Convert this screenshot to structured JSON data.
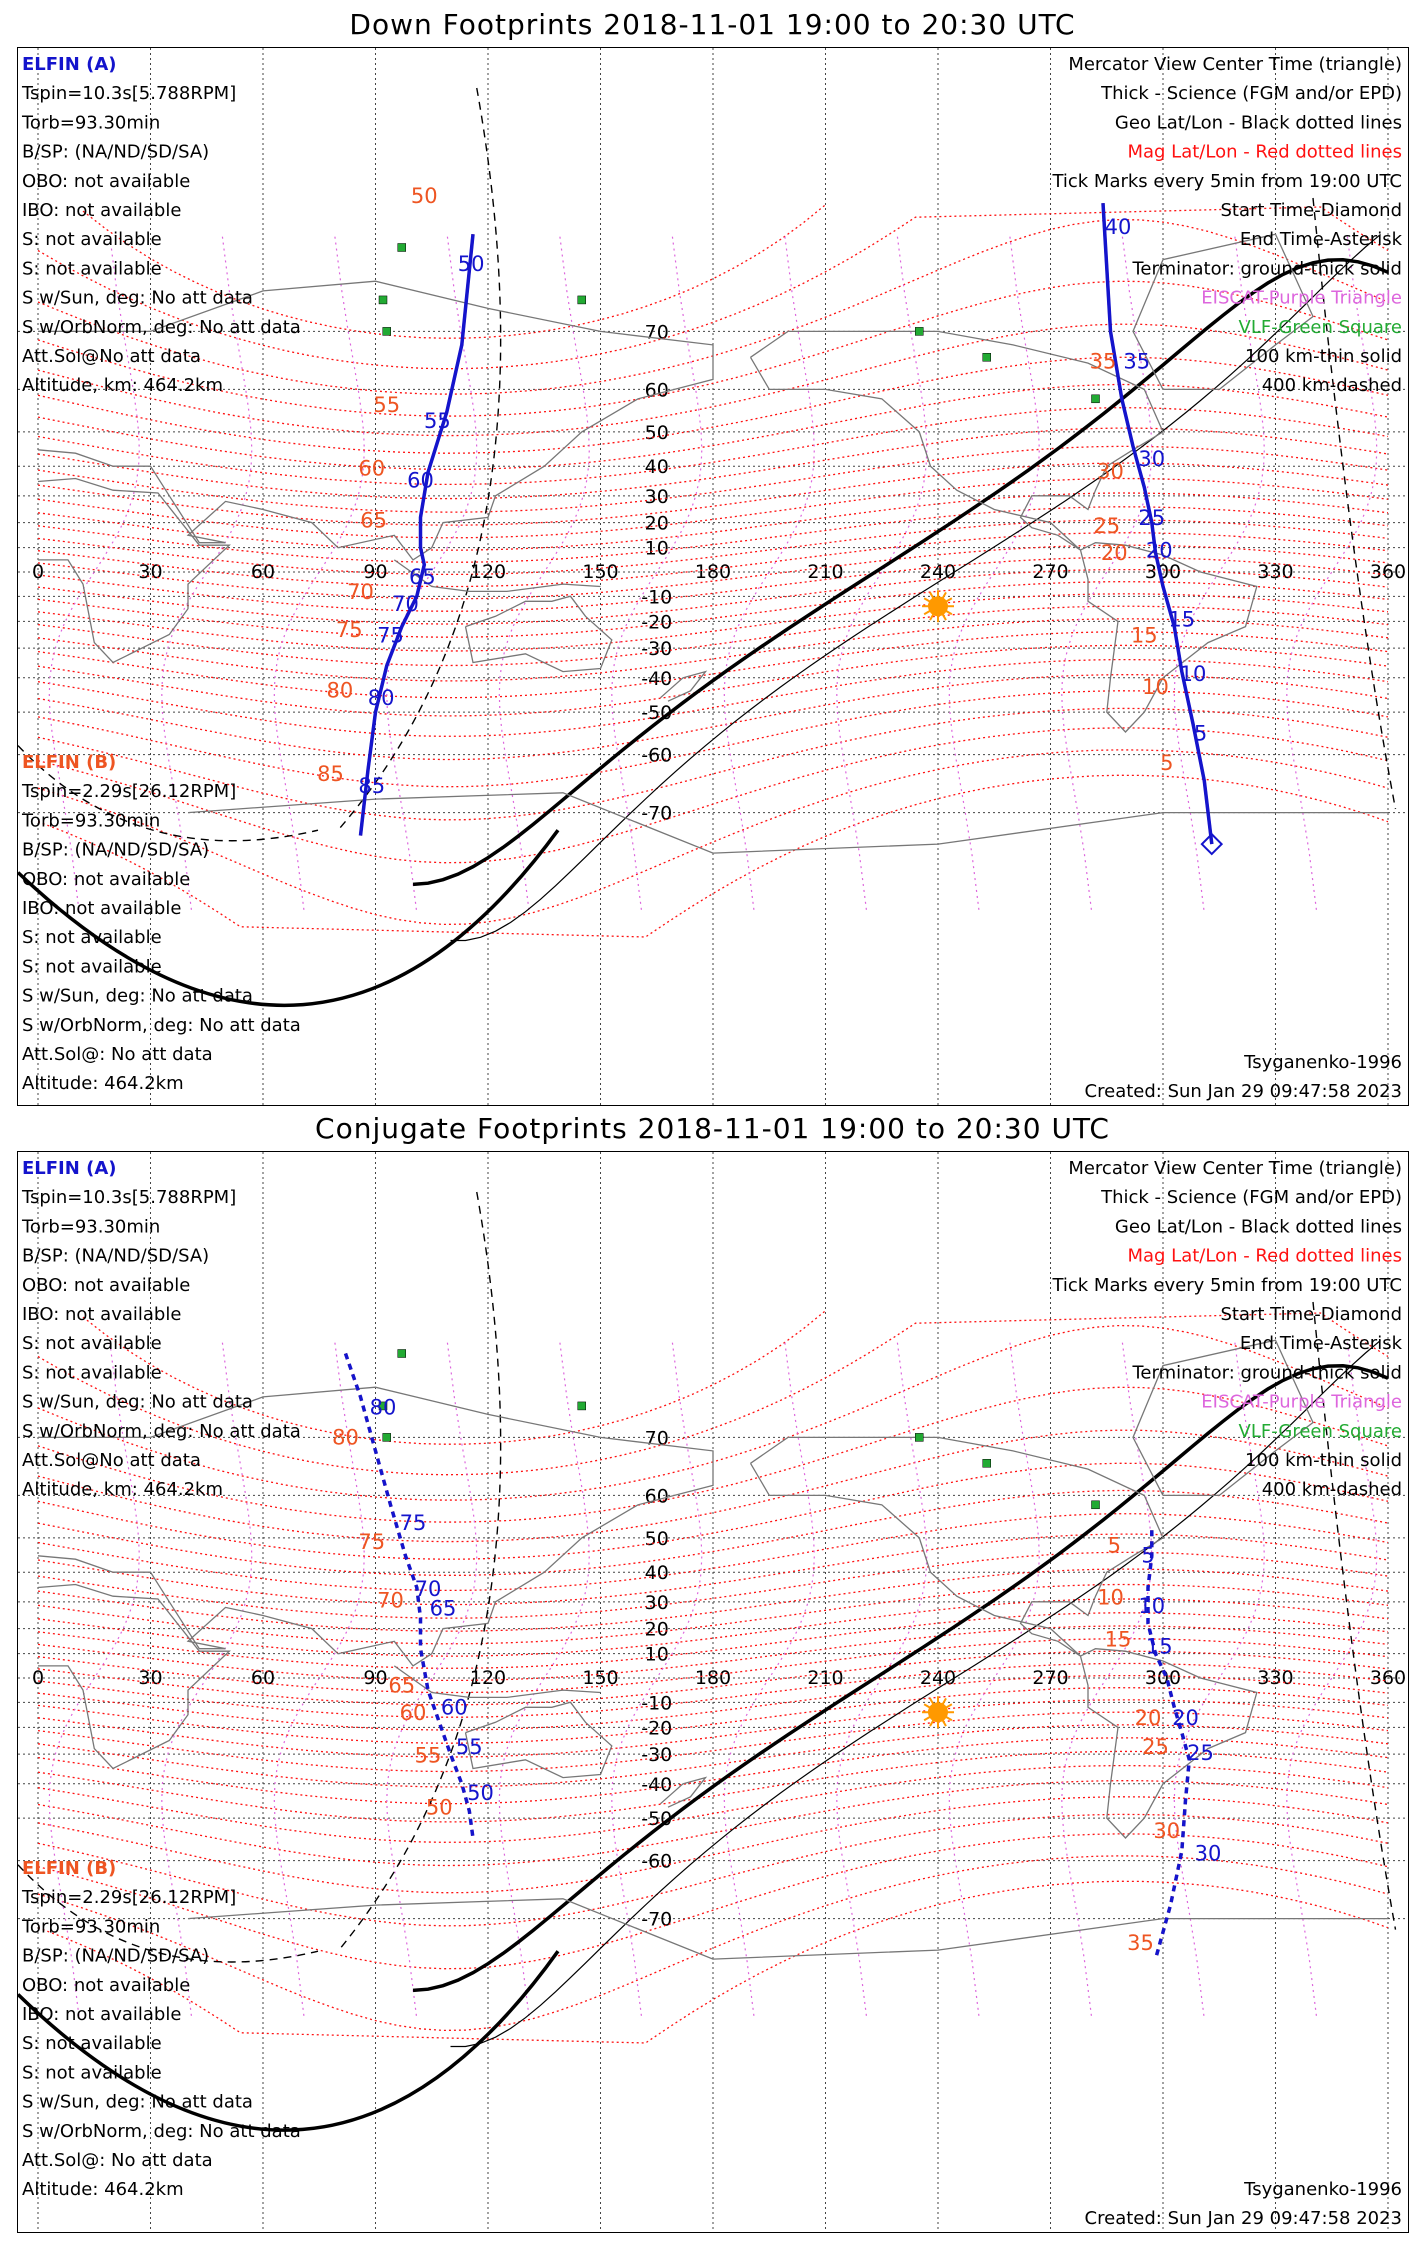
{
  "colors": {
    "sat_a": "#1414cc",
    "sat_b": "#ee5522",
    "mag_grid": "#ff1111",
    "geo_grid": "#000000",
    "sun": "#ff9900",
    "vlf": "#22aa33",
    "eiscat": "#dd66dd"
  },
  "panels": [
    {
      "id": "down",
      "title": "Down Footprints 2018-11-01 19:00 to 20:30 UTC",
      "elfin_a": {
        "name": "ELFIN (A)",
        "lines": [
          "Tspin=10.3s[5.788RPM]",
          "Torb=93.30min",
          "B/SP: (NA/ND/SD/SA)",
          "OBO: not available",
          "IBO: not available",
          "S: not available",
          "S: not available",
          "S w/Sun, deg: No att data",
          "S w/OrbNorm, deg: No att data",
          "Att.Sol@No att data",
          "Altitude, km: 464.2km"
        ]
      },
      "elfin_b": {
        "name": "ELFIN (B)",
        "lines": [
          "Tspin=2.29s[26.12RPM]",
          "Torb=93.30min",
          "B/SP: (NA/ND/SD/SA)",
          "OBO: not available",
          "IBO: not available",
          "S: not available",
          "S: not available",
          "S w/Sun, deg: No att data",
          "S w/OrbNorm, deg: No att data",
          "Att.Sol@: No att data",
          "Altitude: 464.2km"
        ]
      },
      "legend": [
        "Mercator View Center Time (triangle)",
        "Thick - Science (FGM and/or EPD)",
        "Geo Lat/Lon - Black dotted lines",
        "Mag Lat/Lon - Red dotted lines",
        "Tick Marks every 5min from 19:00 UTC",
        "Start Time-Diamond",
        "End Time-Asterisk",
        "Terminator: ground-thick solid",
        "EISCAT-Purple Triangle",
        "VLF-Green Square",
        "100 km-thin solid",
        "400 km-dashed"
      ],
      "footer": [
        "Tsyganenko-1996",
        "Created: Sun Jan 29 09:47:58 2023"
      ],
      "track_a_left": [
        {
          "label": "50",
          "lon": 115.5,
          "lat": 77
        },
        {
          "label": "55",
          "lon": 106.5,
          "lat": 51
        },
        {
          "label": "60",
          "lon": 102,
          "lat": 33
        },
        {
          "label": "65",
          "lon": 102.5,
          "lat": -5
        },
        {
          "label": "70",
          "lon": 98,
          "lat": -16
        },
        {
          "label": "75",
          "lon": 94,
          "lat": -28
        },
        {
          "label": "80",
          "lon": 91.5,
          "lat": -48
        },
        {
          "label": "85",
          "lon": 89,
          "lat": -67
        }
      ],
      "track_b_left": [
        {
          "label": "50",
          "lon": 103,
          "lat": 82
        },
        {
          "label": "55",
          "lon": 93,
          "lat": 55
        },
        {
          "label": "60",
          "lon": 89,
          "lat": 37
        },
        {
          "label": "65",
          "lon": 89.5,
          "lat": 18
        },
        {
          "label": "70",
          "lon": 86,
          "lat": -11
        },
        {
          "label": "75",
          "lon": 83,
          "lat": -26
        },
        {
          "label": "80",
          "lon": 80.5,
          "lat": -46
        },
        {
          "label": "85",
          "lon": 78,
          "lat": -65
        }
      ],
      "track_a_right": [
        {
          "label": "40",
          "lon": 288,
          "lat": 80
        },
        {
          "label": "35",
          "lon": 293,
          "lat": 64
        },
        {
          "label": "30",
          "lon": 297,
          "lat": 40
        },
        {
          "label": "25",
          "lon": 297,
          "lat": 19
        },
        {
          "label": "20",
          "lon": 299,
          "lat": 6
        },
        {
          "label": "15",
          "lon": 305,
          "lat": -22
        },
        {
          "label": "10",
          "lon": 308,
          "lat": -41
        },
        {
          "label": "5",
          "lon": 310,
          "lat": -57
        }
      ],
      "track_b_right": [
        {
          "label": "35",
          "lon": 284,
          "lat": 64
        },
        {
          "label": "30",
          "lon": 286,
          "lat": 36
        },
        {
          "label": "25",
          "lon": 285,
          "lat": 16
        },
        {
          "label": "20",
          "lon": 287,
          "lat": 5
        },
        {
          "label": "15",
          "lon": 295,
          "lat": -28
        },
        {
          "label": "10",
          "lon": 298,
          "lat": -45
        },
        {
          "label": "5",
          "lon": 301,
          "lat": -63
        }
      ],
      "path_left": [
        [
          116,
          80
        ],
        [
          113,
          68
        ],
        [
          109,
          55
        ],
        [
          104,
          38
        ],
        [
          102,
          22
        ],
        [
          102,
          10
        ],
        [
          103,
          3
        ],
        [
          101,
          -10
        ],
        [
          97,
          -22
        ],
        [
          93,
          -36
        ],
        [
          90,
          -50
        ],
        [
          88,
          -63
        ],
        [
          86,
          -73
        ]
      ],
      "path_right": [
        [
          284,
          82
        ],
        [
          286,
          70
        ],
        [
          289,
          58
        ],
        [
          292,
          46
        ],
        [
          295,
          33
        ],
        [
          297,
          20
        ],
        [
          298,
          8
        ],
        [
          300,
          -6
        ],
        [
          303,
          -22
        ],
        [
          305,
          -38
        ],
        [
          308,
          -53
        ],
        [
          311,
          -65
        ],
        [
          313,
          -74
        ]
      ]
    },
    {
      "id": "conjugate",
      "title": "Conjugate Footprints 2018-11-01 19:00 to 20:30 UTC",
      "elfin_a": {
        "name": "ELFIN (A)",
        "lines": [
          "Tspin=10.3s[5.788RPM]",
          "Torb=93.30min",
          "B/SP: (NA/ND/SD/SA)",
          "OBO: not available",
          "IBO: not available",
          "S: not available",
          "S: not available",
          "S w/Sun, deg: No att data",
          "S w/OrbNorm, deg: No att data",
          "Att.Sol@No att data",
          "Altitude, km: 464.2km"
        ]
      },
      "elfin_b": {
        "name": "ELFIN (B)",
        "lines": [
          "Tspin=2.29s[26.12RPM]",
          "Torb=93.30min",
          "B/SP: (NA/ND/SD/SA)",
          "OBO: not available",
          "IBO: not available",
          "S: not available",
          "S: not available",
          "S w/Sun, deg: No att data",
          "S w/OrbNorm, deg: No att data",
          "Att.Sol@: No att data",
          "Altitude: 464.2km"
        ]
      },
      "legend": [
        "Mercator View Center Time (triangle)",
        "Thick - Science (FGM and/or EPD)",
        "Geo Lat/Lon - Black dotted lines",
        "Mag Lat/Lon - Red dotted lines",
        "Tick Marks every 5min from 19:00 UTC",
        "Start Time-Diamond",
        "End Time-Asterisk",
        "Terminator: ground-thick solid",
        "EISCAT-Purple Triangle",
        "VLF-Green Square",
        "100 km-thin solid",
        "400 km-dashed"
      ],
      "footer": [
        "Tsyganenko-1996",
        "Created: Sun Jan 29 09:47:58 2023"
      ],
      "track_a_left": [
        {
          "label": "80",
          "lon": 92,
          "lat": 73
        },
        {
          "label": "75",
          "lon": 100,
          "lat": 52
        },
        {
          "label": "70",
          "lon": 104,
          "lat": 32
        },
        {
          "label": "65",
          "lon": 108,
          "lat": 25
        },
        {
          "label": "60",
          "lon": 111,
          "lat": -15
        },
        {
          "label": "55",
          "lon": 115,
          "lat": -30
        },
        {
          "label": "50",
          "lon": 118,
          "lat": -45
        }
      ],
      "track_b_left": [
        {
          "label": "80",
          "lon": 82,
          "lat": 69
        },
        {
          "label": "75",
          "lon": 89,
          "lat": 47
        },
        {
          "label": "70",
          "lon": 94,
          "lat": 28
        },
        {
          "label": "65",
          "lon": 97,
          "lat": -6
        },
        {
          "label": "60",
          "lon": 100,
          "lat": -17
        },
        {
          "label": "55",
          "lon": 104,
          "lat": -33
        },
        {
          "label": "50",
          "lon": 107,
          "lat": -49
        }
      ],
      "track_a_right": [
        {
          "label": "5",
          "lon": 296,
          "lat": 43
        },
        {
          "label": "10",
          "lon": 297,
          "lat": 26
        },
        {
          "label": "15",
          "lon": 299,
          "lat": 10
        },
        {
          "label": "20",
          "lon": 306,
          "lat": -19
        },
        {
          "label": "25",
          "lon": 310,
          "lat": -32
        },
        {
          "label": "30",
          "lon": 312,
          "lat": -60
        }
      ],
      "track_b_right": [
        {
          "label": "5",
          "lon": 287,
          "lat": 46
        },
        {
          "label": "10",
          "lon": 286,
          "lat": 29
        },
        {
          "label": "15",
          "lon": 288,
          "lat": 13
        },
        {
          "label": "20",
          "lon": 296,
          "lat": -19
        },
        {
          "label": "25",
          "lon": 298,
          "lat": -30
        },
        {
          "label": "30",
          "lon": 301,
          "lat": -55
        },
        {
          "label": "35",
          "lon": 294,
          "lat": -74
        }
      ],
      "path_left": [
        [
          82,
          79
        ],
        [
          86,
          75
        ],
        [
          90,
          68
        ],
        [
          94,
          58
        ],
        [
          98,
          45
        ],
        [
          101,
          35
        ],
        [
          102,
          24
        ],
        [
          102,
          12
        ],
        [
          104,
          -5
        ],
        [
          107,
          -18
        ],
        [
          110,
          -30
        ],
        [
          113,
          -40
        ],
        [
          115,
          -48
        ],
        [
          116,
          -55
        ]
      ],
      "path_right": [
        [
          297,
          52
        ],
        [
          297,
          45
        ],
        [
          296,
          35
        ],
        [
          296,
          22
        ],
        [
          298,
          10
        ],
        [
          301,
          0
        ],
        [
          303,
          -12
        ],
        [
          305,
          -22
        ],
        [
          307,
          -32
        ],
        [
          306,
          -45
        ],
        [
          305,
          -58
        ],
        [
          302,
          -68
        ],
        [
          298,
          -75
        ]
      ]
    }
  ],
  "axes": {
    "lon_ticks": [
      "0",
      "30",
      "60",
      "90",
      "120",
      "150",
      "180",
      "210",
      "240",
      "270",
      "300",
      "330",
      "360"
    ],
    "lat_ticks": [
      "70",
      "60",
      "50",
      "40",
      "30",
      "20",
      "10",
      "-10",
      "-20",
      "-30",
      "-40",
      "-50",
      "-60",
      "-70"
    ]
  }
}
